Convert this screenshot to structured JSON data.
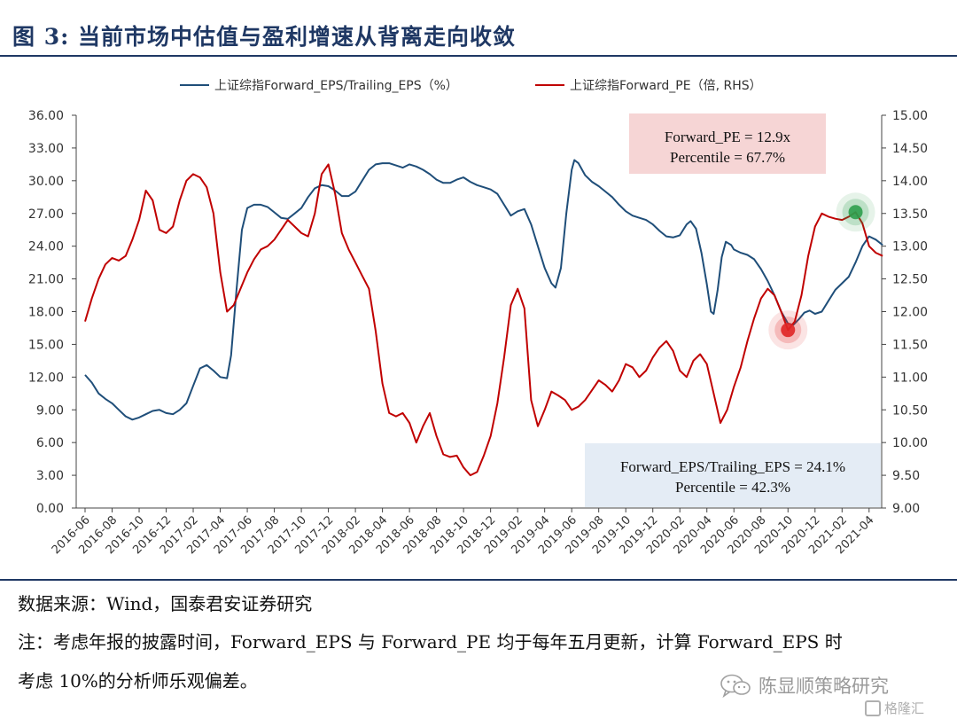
{
  "figure": {
    "title": "图 3:  当前市场中估值与盈利增速从背离走向收敛"
  },
  "chart_data": {
    "type": "line",
    "x_tick_labels": [
      "2016-06",
      "2016-08",
      "2016-10",
      "2016-12",
      "2017-02",
      "2017-04",
      "2017-06",
      "2017-08",
      "2017-10",
      "2017-12",
      "2018-02",
      "2018-04",
      "2018-06",
      "2018-08",
      "2018-10",
      "2018-12",
      "2019-02",
      "2019-04",
      "2019-06",
      "2019-08",
      "2019-10",
      "2019-12",
      "2020-02",
      "2020-04",
      "2020-06",
      "2020-08",
      "2020-10",
      "2020-12",
      "2021-02",
      "2021-04"
    ],
    "y_left": {
      "range": [
        0,
        36
      ],
      "ticks": [
        "0.00",
        "3.00",
        "6.00",
        "9.00",
        "12.00",
        "15.00",
        "18.00",
        "21.00",
        "24.00",
        "27.00",
        "30.00",
        "33.00",
        "36.00"
      ]
    },
    "y_right": {
      "range": [
        9,
        15
      ],
      "ticks": [
        "9.00",
        "9.50",
        "10.00",
        "10.50",
        "11.00",
        "11.50",
        "12.00",
        "12.50",
        "13.00",
        "13.50",
        "14.00",
        "14.50",
        "15.00"
      ]
    },
    "grid": false,
    "legend_position": "top",
    "series": [
      {
        "name": "上证综指Forward_EPS/Trailing_EPS（%）",
        "axis": "left",
        "color": "#1f4e79",
        "points": [
          [
            0,
            12.2
          ],
          [
            0.25,
            11.5
          ],
          [
            0.5,
            10.5
          ],
          [
            0.75,
            10.0
          ],
          [
            1.0,
            9.6
          ],
          [
            1.25,
            9.0
          ],
          [
            1.5,
            8.4
          ],
          [
            1.75,
            8.1
          ],
          [
            2.0,
            8.3
          ],
          [
            2.25,
            8.6
          ],
          [
            2.5,
            8.9
          ],
          [
            2.75,
            9.0
          ],
          [
            3.0,
            8.7
          ],
          [
            3.25,
            8.6
          ],
          [
            3.5,
            9.0
          ],
          [
            3.75,
            9.6
          ],
          [
            4.0,
            11.2
          ],
          [
            4.25,
            12.8
          ],
          [
            4.5,
            13.1
          ],
          [
            4.75,
            12.6
          ],
          [
            5.0,
            12.0
          ],
          [
            5.25,
            11.9
          ],
          [
            5.4,
            14.0
          ],
          [
            5.6,
            20.0
          ],
          [
            5.8,
            25.5
          ],
          [
            6.0,
            27.5
          ],
          [
            6.25,
            27.8
          ],
          [
            6.5,
            27.8
          ],
          [
            6.75,
            27.6
          ],
          [
            7.0,
            27.1
          ],
          [
            7.25,
            26.6
          ],
          [
            7.5,
            26.5
          ],
          [
            7.75,
            27.0
          ],
          [
            8.0,
            27.5
          ],
          [
            8.25,
            28.5
          ],
          [
            8.5,
            29.3
          ],
          [
            8.75,
            29.6
          ],
          [
            9.0,
            29.5
          ],
          [
            9.25,
            29.1
          ],
          [
            9.5,
            28.6
          ],
          [
            9.75,
            28.6
          ],
          [
            10.0,
            29.0
          ],
          [
            10.25,
            30.0
          ],
          [
            10.5,
            31.0
          ],
          [
            10.75,
            31.5
          ],
          [
            11.0,
            31.6
          ],
          [
            11.25,
            31.6
          ],
          [
            11.5,
            31.4
          ],
          [
            11.75,
            31.2
          ],
          [
            12.0,
            31.5
          ],
          [
            12.25,
            31.3
          ],
          [
            12.5,
            31.0
          ],
          [
            12.75,
            30.6
          ],
          [
            13.0,
            30.1
          ],
          [
            13.25,
            29.8
          ],
          [
            13.5,
            29.8
          ],
          [
            13.75,
            30.1
          ],
          [
            14.0,
            30.3
          ],
          [
            14.25,
            29.9
          ],
          [
            14.5,
            29.6
          ],
          [
            14.75,
            29.4
          ],
          [
            15.0,
            29.2
          ],
          [
            15.25,
            28.8
          ],
          [
            15.5,
            27.8
          ],
          [
            15.75,
            26.8
          ],
          [
            16.0,
            27.2
          ],
          [
            16.25,
            27.4
          ],
          [
            16.5,
            26.0
          ],
          [
            16.75,
            24.0
          ],
          [
            17.0,
            22.0
          ],
          [
            17.25,
            20.6
          ],
          [
            17.4,
            20.2
          ],
          [
            17.6,
            22.0
          ],
          [
            17.8,
            27.0
          ],
          [
            18.0,
            31.0
          ],
          [
            18.1,
            31.9
          ],
          [
            18.25,
            31.6
          ],
          [
            18.5,
            30.5
          ],
          [
            18.75,
            29.9
          ],
          [
            19.0,
            29.5
          ],
          [
            19.25,
            29.0
          ],
          [
            19.5,
            28.5
          ],
          [
            19.75,
            27.8
          ],
          [
            20.0,
            27.2
          ],
          [
            20.25,
            26.8
          ],
          [
            20.5,
            26.6
          ],
          [
            20.75,
            26.4
          ],
          [
            21.0,
            26.0
          ],
          [
            21.25,
            25.4
          ],
          [
            21.5,
            24.9
          ],
          [
            21.75,
            24.8
          ],
          [
            22.0,
            25.0
          ],
          [
            22.25,
            26.0
          ],
          [
            22.4,
            26.3
          ],
          [
            22.6,
            25.6
          ],
          [
            22.8,
            23.4
          ],
          [
            23.0,
            20.5
          ],
          [
            23.15,
            18.0
          ],
          [
            23.25,
            17.8
          ],
          [
            23.4,
            20.0
          ],
          [
            23.55,
            23.0
          ],
          [
            23.7,
            24.4
          ],
          [
            23.9,
            24.1
          ],
          [
            24.0,
            23.7
          ],
          [
            24.25,
            23.4
          ],
          [
            24.5,
            23.2
          ],
          [
            24.75,
            22.8
          ],
          [
            25.0,
            21.9
          ],
          [
            25.25,
            20.8
          ],
          [
            25.5,
            19.5
          ],
          [
            25.75,
            18.0
          ],
          [
            26.0,
            16.9
          ],
          [
            26.2,
            16.8
          ],
          [
            26.4,
            17.3
          ],
          [
            26.6,
            17.9
          ],
          [
            26.8,
            18.1
          ],
          [
            27.0,
            17.8
          ],
          [
            27.25,
            18.0
          ],
          [
            27.5,
            19.0
          ],
          [
            27.75,
            20.0
          ],
          [
            28.0,
            20.6
          ],
          [
            28.25,
            21.2
          ],
          [
            28.5,
            22.5
          ],
          [
            28.75,
            24.0
          ],
          [
            29.0,
            24.9
          ],
          [
            29.25,
            24.6
          ],
          [
            29.5,
            24.1
          ]
        ]
      },
      {
        "name": "上证综指Forward_PE（倍, RHS）",
        "axis": "right",
        "color": "#c00000",
        "points": [
          [
            0,
            11.85
          ],
          [
            0.25,
            12.2
          ],
          [
            0.5,
            12.5
          ],
          [
            0.75,
            12.72
          ],
          [
            1.0,
            12.82
          ],
          [
            1.25,
            12.78
          ],
          [
            1.5,
            12.85
          ],
          [
            1.75,
            13.1
          ],
          [
            2.0,
            13.4
          ],
          [
            2.25,
            13.85
          ],
          [
            2.5,
            13.7
          ],
          [
            2.75,
            13.25
          ],
          [
            3.0,
            13.2
          ],
          [
            3.25,
            13.3
          ],
          [
            3.5,
            13.7
          ],
          [
            3.75,
            14.0
          ],
          [
            4.0,
            14.1
          ],
          [
            4.25,
            14.05
          ],
          [
            4.5,
            13.9
          ],
          [
            4.75,
            13.5
          ],
          [
            5.0,
            12.6
          ],
          [
            5.25,
            12.0
          ],
          [
            5.5,
            12.1
          ],
          [
            5.75,
            12.35
          ],
          [
            6.0,
            12.6
          ],
          [
            6.25,
            12.8
          ],
          [
            6.5,
            12.95
          ],
          [
            6.75,
            13.0
          ],
          [
            7.0,
            13.1
          ],
          [
            7.25,
            13.25
          ],
          [
            7.5,
            13.4
          ],
          [
            7.75,
            13.3
          ],
          [
            8.0,
            13.2
          ],
          [
            8.25,
            13.15
          ],
          [
            8.5,
            13.5
          ],
          [
            8.75,
            14.1
          ],
          [
            9.0,
            14.25
          ],
          [
            9.25,
            13.8
          ],
          [
            9.5,
            13.2
          ],
          [
            9.75,
            12.95
          ],
          [
            10.0,
            12.75
          ],
          [
            10.25,
            12.55
          ],
          [
            10.5,
            12.35
          ],
          [
            10.75,
            11.7
          ],
          [
            11.0,
            10.9
          ],
          [
            11.25,
            10.45
          ],
          [
            11.5,
            10.4
          ],
          [
            11.75,
            10.45
          ],
          [
            12.0,
            10.3
          ],
          [
            12.25,
            10.0
          ],
          [
            12.5,
            10.25
          ],
          [
            12.75,
            10.45
          ],
          [
            13.0,
            10.1
          ],
          [
            13.25,
            9.82
          ],
          [
            13.5,
            9.78
          ],
          [
            13.75,
            9.8
          ],
          [
            14.0,
            9.62
          ],
          [
            14.25,
            9.5
          ],
          [
            14.5,
            9.55
          ],
          [
            14.75,
            9.8
          ],
          [
            15.0,
            10.1
          ],
          [
            15.25,
            10.6
          ],
          [
            15.5,
            11.3
          ],
          [
            15.75,
            12.1
          ],
          [
            16.0,
            12.35
          ],
          [
            16.25,
            12.05
          ],
          [
            16.5,
            10.65
          ],
          [
            16.75,
            10.25
          ],
          [
            17.0,
            10.5
          ],
          [
            17.25,
            10.78
          ],
          [
            17.5,
            10.72
          ],
          [
            17.75,
            10.65
          ],
          [
            18.0,
            10.5
          ],
          [
            18.25,
            10.55
          ],
          [
            18.5,
            10.65
          ],
          [
            18.75,
            10.8
          ],
          [
            19.0,
            10.95
          ],
          [
            19.25,
            10.88
          ],
          [
            19.5,
            10.78
          ],
          [
            19.75,
            10.95
          ],
          [
            20.0,
            11.2
          ],
          [
            20.25,
            11.15
          ],
          [
            20.5,
            11.0
          ],
          [
            20.75,
            11.1
          ],
          [
            21.0,
            11.3
          ],
          [
            21.25,
            11.45
          ],
          [
            21.5,
            11.55
          ],
          [
            21.75,
            11.4
          ],
          [
            22.0,
            11.1
          ],
          [
            22.25,
            11.0
          ],
          [
            22.5,
            11.25
          ],
          [
            22.75,
            11.35
          ],
          [
            23.0,
            11.2
          ],
          [
            23.25,
            10.75
          ],
          [
            23.5,
            10.3
          ],
          [
            23.75,
            10.5
          ],
          [
            24.0,
            10.85
          ],
          [
            24.25,
            11.15
          ],
          [
            24.5,
            11.55
          ],
          [
            24.75,
            11.9
          ],
          [
            25.0,
            12.2
          ],
          [
            25.25,
            12.35
          ],
          [
            25.5,
            12.25
          ],
          [
            25.75,
            12.0
          ],
          [
            26.0,
            11.72
          ],
          [
            26.25,
            11.85
          ],
          [
            26.5,
            12.25
          ],
          [
            26.75,
            12.85
          ],
          [
            27.0,
            13.3
          ],
          [
            27.25,
            13.5
          ],
          [
            27.5,
            13.45
          ],
          [
            27.75,
            13.42
          ],
          [
            28.0,
            13.4
          ],
          [
            28.25,
            13.45
          ],
          [
            28.5,
            13.52
          ],
          [
            28.75,
            13.35
          ],
          [
            29.0,
            13.0
          ],
          [
            29.25,
            12.9
          ],
          [
            29.5,
            12.85
          ]
        ]
      }
    ],
    "annotations": [
      {
        "id": "pe",
        "lines": [
          "Forward_PE = 12.9x",
          "Percentile = 67.7%"
        ],
        "background": "#f6d5d5"
      },
      {
        "id": "eps",
        "lines": [
          "Forward_EPS/Trailing_EPS = 24.1%",
          "Percentile = 42.3%"
        ],
        "background": "#e4ecf5"
      }
    ],
    "highlight_points": [
      {
        "id": "high",
        "x": 28.5,
        "y": 13.52,
        "axis": "right",
        "color": "#2e9e4d"
      },
      {
        "id": "low",
        "x": 26.0,
        "y": 11.72,
        "axis": "right",
        "color": "#e02525"
      }
    ]
  },
  "footer": {
    "source": "数据来源：Wind，国泰君安证券研究",
    "note_line1": "注：考虑年报的披露时间，Forward_EPS 与 Forward_PE 均于每年五月更新，计算 Forward_EPS 时",
    "note_line2": "考虑 10%的分析师乐观偏差。"
  },
  "watermark": {
    "text": "陈显顺策略研究",
    "icon": "wechat-icon",
    "brand_text": "格隆汇",
    "brand_icon": "brand-icon"
  }
}
